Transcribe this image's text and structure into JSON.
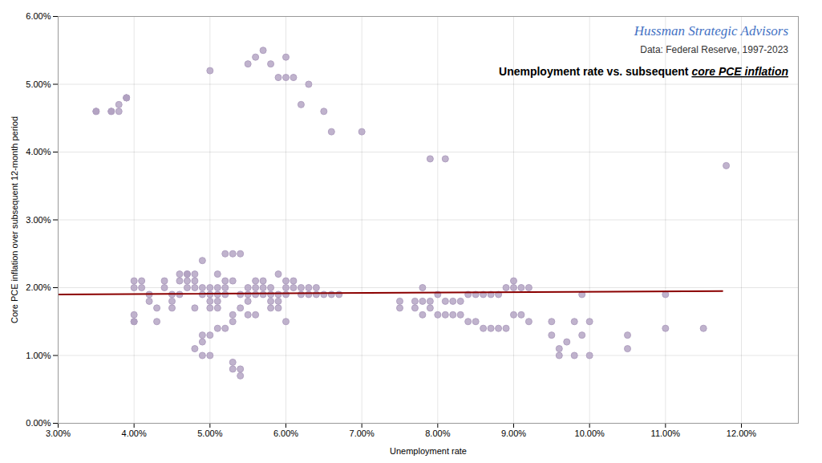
{
  "chart_data": {
    "type": "scatter",
    "title": "Hussman Strategic Advisors",
    "subtitle": "Data: Federal Reserve, 1997-2023",
    "annotations": [
      "Unemployment rate vs. subsequent ",
      "core PCE inflation"
    ],
    "xlabel": "Unemployment rate",
    "ylabel": "Core PCE inflation over subsequent 12-month period",
    "xlim": [
      0.03,
      0.1275
    ],
    "ylim": [
      0.0,
      0.06
    ],
    "xticks": [
      {
        "value": 0.03,
        "label": "3.00%"
      },
      {
        "value": 0.04,
        "label": "4.00%"
      },
      {
        "value": 0.05,
        "label": "5.00%"
      },
      {
        "value": 0.06,
        "label": "6.00%"
      },
      {
        "value": 0.07,
        "label": "7.00%"
      },
      {
        "value": 0.08,
        "label": "8.00%"
      },
      {
        "value": 0.09,
        "label": "9.00%"
      },
      {
        "value": 0.1,
        "label": "10.00%"
      },
      {
        "value": 0.11,
        "label": "11.00%"
      },
      {
        "value": 0.12,
        "label": "12.00%"
      }
    ],
    "yticks": [
      {
        "value": 0.0,
        "label": "0.00%"
      },
      {
        "value": 0.01,
        "label": "1.00%"
      },
      {
        "value": 0.02,
        "label": "2.00%"
      },
      {
        "value": 0.03,
        "label": "3.00%"
      },
      {
        "value": 0.04,
        "label": "4.00%"
      },
      {
        "value": 0.05,
        "label": "5.00%"
      },
      {
        "value": 0.06,
        "label": "6.00%"
      }
    ],
    "grid": true,
    "series": [
      {
        "type": "scatter",
        "color": "#B0A0C0",
        "x": [
          0.035,
          0.035,
          0.037,
          0.037,
          0.038,
          0.038,
          0.039,
          0.039,
          0.039,
          0.04,
          0.04,
          0.04,
          0.04,
          0.04,
          0.041,
          0.041,
          0.042,
          0.042,
          0.043,
          0.043,
          0.044,
          0.044,
          0.045,
          0.045,
          0.045,
          0.046,
          0.046,
          0.046,
          0.047,
          0.047,
          0.047,
          0.047,
          0.048,
          0.048,
          0.048,
          0.048,
          0.048,
          0.049,
          0.049,
          0.049,
          0.049,
          0.049,
          0.049,
          0.05,
          0.05,
          0.05,
          0.05,
          0.05,
          0.05,
          0.05,
          0.051,
          0.051,
          0.051,
          0.051,
          0.051,
          0.051,
          0.052,
          0.052,
          0.052,
          0.052,
          0.052,
          0.053,
          0.053,
          0.053,
          0.053,
          0.053,
          0.053,
          0.054,
          0.054,
          0.054,
          0.054,
          0.054,
          0.055,
          0.055,
          0.055,
          0.055,
          0.055,
          0.056,
          0.056,
          0.056,
          0.056,
          0.056,
          0.057,
          0.057,
          0.057,
          0.057,
          0.058,
          0.058,
          0.058,
          0.058,
          0.058,
          0.059,
          0.059,
          0.059,
          0.059,
          0.059,
          0.06,
          0.06,
          0.06,
          0.06,
          0.06,
          0.06,
          0.061,
          0.061,
          0.061,
          0.062,
          0.062,
          0.062,
          0.063,
          0.063,
          0.063,
          0.064,
          0.064,
          0.065,
          0.065,
          0.066,
          0.066,
          0.067,
          0.07,
          0.075,
          0.075,
          0.077,
          0.077,
          0.078,
          0.078,
          0.078,
          0.079,
          0.079,
          0.079,
          0.08,
          0.08,
          0.081,
          0.081,
          0.081,
          0.082,
          0.082,
          0.083,
          0.083,
          0.084,
          0.084,
          0.085,
          0.085,
          0.086,
          0.086,
          0.087,
          0.087,
          0.088,
          0.088,
          0.089,
          0.089,
          0.09,
          0.09,
          0.09,
          0.091,
          0.091,
          0.092,
          0.092,
          0.095,
          0.095,
          0.096,
          0.096,
          0.097,
          0.098,
          0.098,
          0.099,
          0.099,
          0.1,
          0.1,
          0.105,
          0.105,
          0.11,
          0.11,
          0.115,
          0.118
        ],
        "values": [
          0.046,
          0.046,
          0.046,
          0.046,
          0.046,
          0.047,
          0.048,
          0.048,
          0.048,
          0.015,
          0.015,
          0.016,
          0.02,
          0.021,
          0.02,
          0.021,
          0.018,
          0.019,
          0.015,
          0.017,
          0.02,
          0.021,
          0.017,
          0.018,
          0.019,
          0.019,
          0.021,
          0.022,
          0.02,
          0.021,
          0.022,
          0.022,
          0.011,
          0.017,
          0.02,
          0.021,
          0.022,
          0.01,
          0.012,
          0.013,
          0.019,
          0.02,
          0.024,
          0.01,
          0.013,
          0.017,
          0.018,
          0.019,
          0.02,
          0.052,
          0.014,
          0.017,
          0.018,
          0.019,
          0.02,
          0.022,
          0.014,
          0.019,
          0.02,
          0.021,
          0.025,
          0.008,
          0.009,
          0.015,
          0.016,
          0.021,
          0.025,
          0.007,
          0.008,
          0.017,
          0.019,
          0.025,
          0.016,
          0.018,
          0.019,
          0.02,
          0.053,
          0.016,
          0.019,
          0.02,
          0.021,
          0.054,
          0.019,
          0.02,
          0.021,
          0.055,
          0.017,
          0.018,
          0.019,
          0.02,
          0.053,
          0.017,
          0.018,
          0.019,
          0.022,
          0.051,
          0.015,
          0.019,
          0.02,
          0.021,
          0.051,
          0.054,
          0.02,
          0.021,
          0.051,
          0.019,
          0.02,
          0.047,
          0.019,
          0.02,
          0.05,
          0.019,
          0.02,
          0.019,
          0.046,
          0.019,
          0.043,
          0.019,
          0.043,
          0.017,
          0.018,
          0.017,
          0.018,
          0.016,
          0.018,
          0.02,
          0.017,
          0.018,
          0.039,
          0.016,
          0.019,
          0.016,
          0.018,
          0.039,
          0.016,
          0.018,
          0.016,
          0.018,
          0.015,
          0.019,
          0.015,
          0.019,
          0.014,
          0.019,
          0.014,
          0.019,
          0.014,
          0.019,
          0.014,
          0.02,
          0.016,
          0.02,
          0.021,
          0.016,
          0.02,
          0.015,
          0.02,
          0.013,
          0.015,
          0.01,
          0.011,
          0.012,
          0.01,
          0.015,
          0.013,
          0.019,
          0.01,
          0.015,
          0.011,
          0.013,
          0.014,
          0.019,
          0.014,
          0.038
        ]
      },
      {
        "type": "line",
        "color": "#8B0000",
        "x": [
          0.03,
          0.1175
        ],
        "values": [
          0.019,
          0.0195
        ]
      }
    ]
  }
}
